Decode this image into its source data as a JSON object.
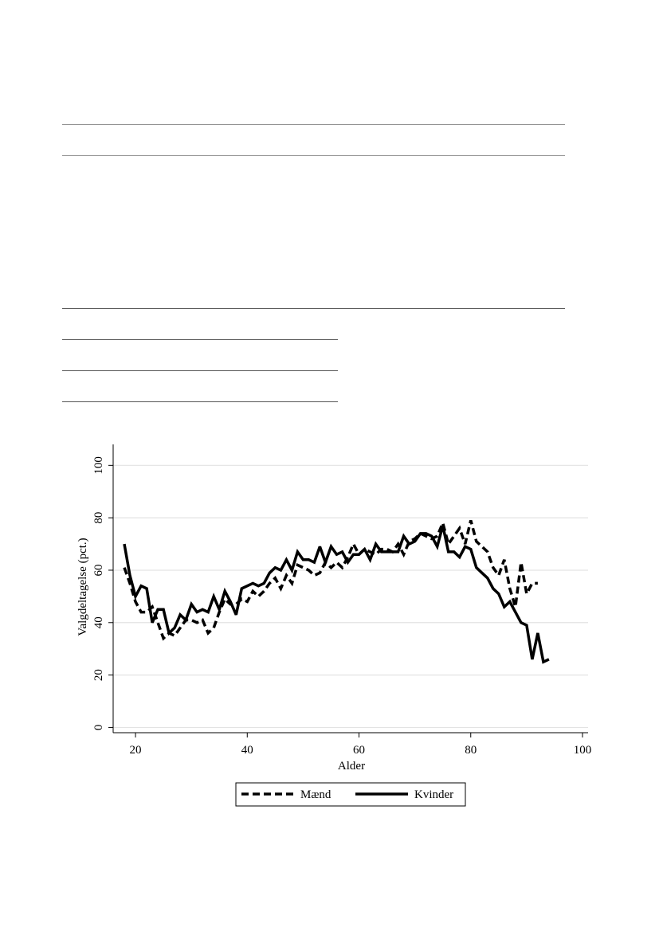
{
  "chart_data": {
    "type": "line",
    "title": "",
    "xlabel": "Alder",
    "ylabel": "Valgdeltagelse (pct.)",
    "xlim": [
      16,
      101
    ],
    "ylim": [
      -2,
      108
    ],
    "xticks": [
      20,
      40,
      60,
      80,
      100
    ],
    "yticks": [
      0,
      20,
      40,
      60,
      80,
      100
    ],
    "grid": "horizontal",
    "legend_position": "bottom",
    "series": [
      {
        "name": "Mænd",
        "style": "dashed",
        "color": "#000000",
        "x": [
          18,
          19,
          20,
          21,
          22,
          23,
          24,
          25,
          26,
          27,
          28,
          29,
          30,
          31,
          32,
          33,
          34,
          35,
          36,
          37,
          38,
          39,
          40,
          41,
          42,
          43,
          44,
          45,
          46,
          47,
          48,
          49,
          50,
          51,
          52,
          53,
          54,
          55,
          56,
          57,
          58,
          59,
          60,
          61,
          62,
          63,
          64,
          65,
          66,
          67,
          68,
          69,
          70,
          71,
          72,
          73,
          74,
          75,
          76,
          77,
          78,
          79,
          80,
          81,
          82,
          83,
          84,
          85,
          86,
          87,
          88,
          89,
          90,
          91,
          92
        ],
        "y": [
          61,
          55,
          48,
          44,
          44,
          46,
          40,
          34,
          36,
          35,
          38,
          41,
          41,
          40,
          41,
          36,
          38,
          44,
          49,
          47,
          47,
          49,
          48,
          52,
          50,
          52,
          55,
          57,
          53,
          58,
          55,
          62,
          61,
          60,
          58,
          59,
          63,
          61,
          63,
          61,
          65,
          70,
          66,
          68,
          67,
          66,
          68,
          68,
          67,
          70,
          66,
          71,
          72,
          74,
          73,
          72,
          73,
          78,
          70,
          73,
          76,
          70,
          79,
          71,
          69,
          67,
          61,
          58,
          64,
          53,
          46,
          63,
          51,
          55,
          55
        ]
      },
      {
        "name": "Kvinder",
        "style": "solid",
        "color": "#000000",
        "x": [
          18,
          19,
          20,
          21,
          22,
          23,
          24,
          25,
          26,
          27,
          28,
          29,
          30,
          31,
          32,
          33,
          34,
          35,
          36,
          37,
          38,
          39,
          40,
          41,
          42,
          43,
          44,
          45,
          46,
          47,
          48,
          49,
          50,
          51,
          52,
          53,
          54,
          55,
          56,
          57,
          58,
          59,
          60,
          61,
          62,
          63,
          64,
          65,
          66,
          67,
          68,
          69,
          70,
          71,
          72,
          73,
          74,
          75,
          76,
          77,
          78,
          79,
          80,
          81,
          82,
          83,
          84,
          85,
          86,
          87,
          88,
          89,
          90,
          91,
          92,
          93,
          94
        ],
        "y": [
          70,
          58,
          50,
          54,
          53,
          40,
          45,
          45,
          36,
          38,
          43,
          41,
          47,
          44,
          45,
          44,
          50,
          45,
          52,
          48,
          43,
          53,
          54,
          55,
          54,
          55,
          59,
          61,
          60,
          64,
          60,
          67,
          64,
          64,
          63,
          69,
          63,
          69,
          66,
          67,
          63,
          66,
          66,
          68,
          64,
          70,
          67,
          67,
          67,
          67,
          73,
          70,
          71,
          74,
          74,
          73,
          69,
          77,
          67,
          67,
          65,
          69,
          68,
          61,
          59,
          57,
          53,
          51,
          46,
          48,
          44,
          40,
          39,
          26,
          36,
          25,
          26
        ]
      }
    ]
  }
}
